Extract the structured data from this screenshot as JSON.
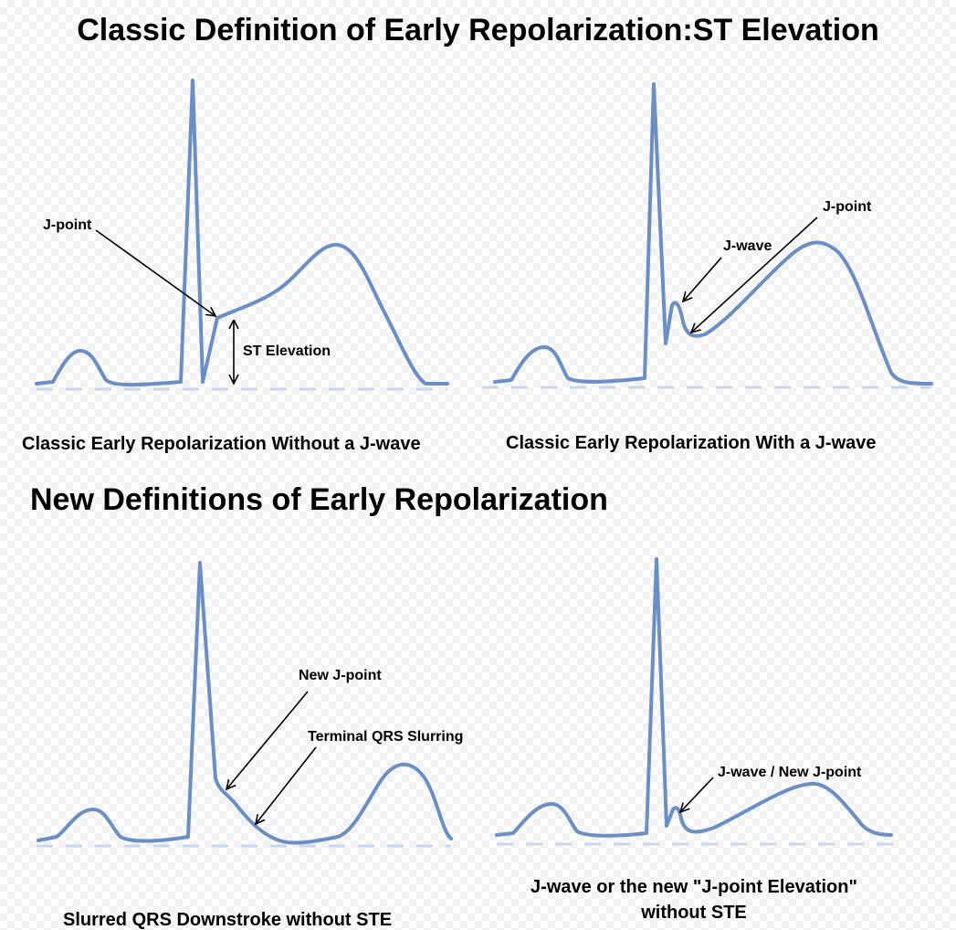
{
  "titles": {
    "classic": "Classic Definition of Early Repolarization:ST Elevation",
    "new": "New Definitions of Early Repolarization"
  },
  "panels": {
    "top_left": {
      "caption": "Classic Early Repolarization Without a J-wave",
      "labels": {
        "j_point": "J-point",
        "st_elevation": "ST Elevation"
      }
    },
    "top_right": {
      "caption": "Classic Early Repolarization With a J-wave",
      "labels": {
        "j_point": "J-point",
        "j_wave": "J-wave"
      }
    },
    "bottom_left": {
      "caption": "Slurred QRS Downstroke without STE",
      "labels": {
        "new_j_point": "New J-point",
        "slurring": "Terminal QRS Slurring"
      }
    },
    "bottom_right": {
      "caption_line1": "J-wave or the new \"J-point Elevation\"",
      "caption_line2": "without STE",
      "labels": {
        "j_wave_new_j_point": "J-wave / New J-point"
      }
    }
  },
  "colors": {
    "trace": "#6a8fc7",
    "baseline": "#c9d6ee",
    "annotation": "#000000"
  }
}
